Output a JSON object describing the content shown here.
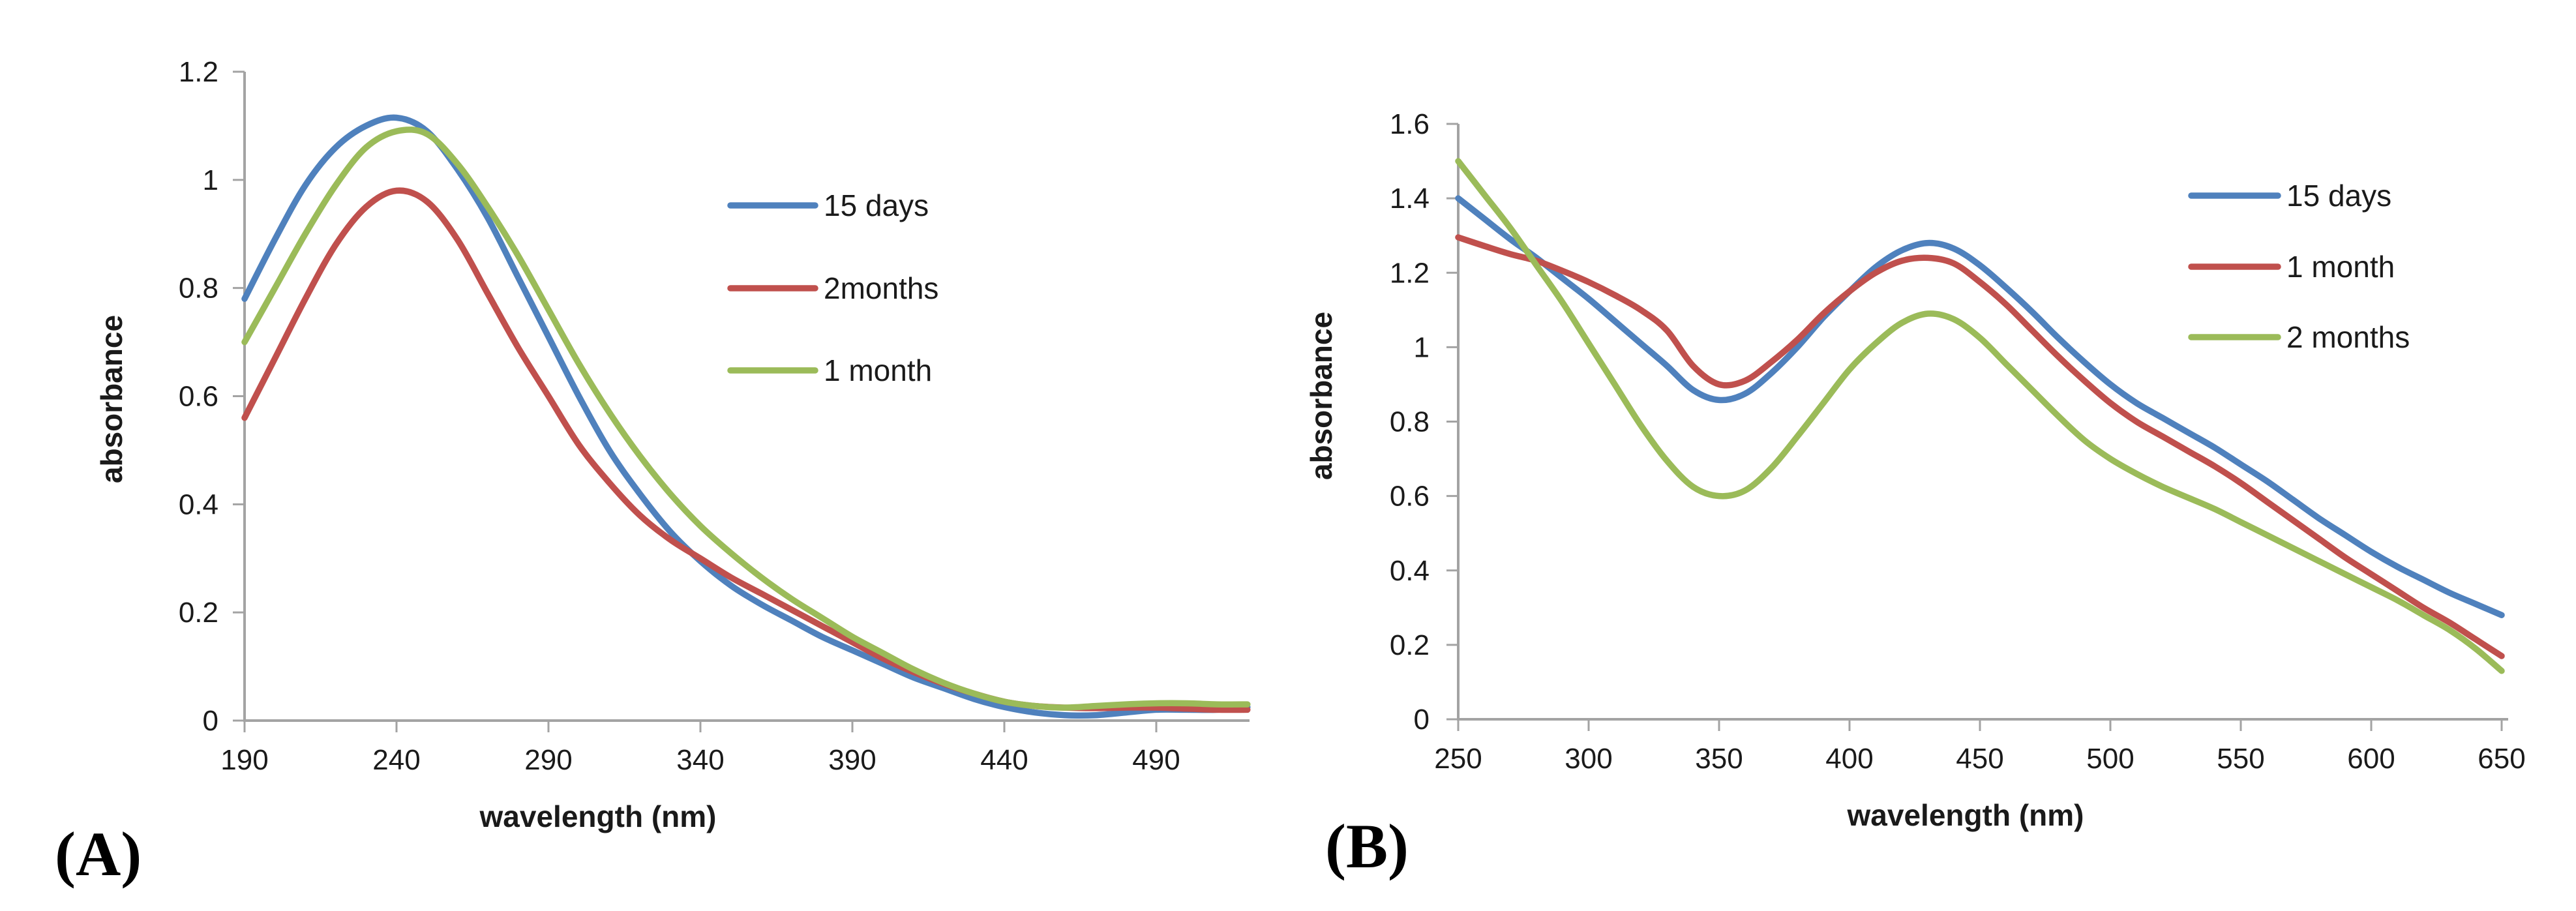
{
  "figure": {
    "background": "#ffffff",
    "panel_a_label": "(A)",
    "panel_b_label": "(B)"
  },
  "colors": {
    "series_blue": "#4F81BD",
    "series_red": "#C0504D",
    "series_green": "#9BBB59",
    "axis_gray": "#A3A3A3",
    "text_black": "#1a1a1a"
  },
  "chart_data": [
    {
      "id": "A",
      "type": "line",
      "panel_label": "(A)",
      "xlabel": "wavelength (nm)",
      "ylabel": "absorbance",
      "xlim": [
        190,
        525
      ],
      "ylim": [
        0,
        1.2
      ],
      "grid": false,
      "legend_position": "inside-right",
      "xticks": [
        190,
        240,
        290,
        340,
        390,
        440,
        490
      ],
      "yticks": [
        0,
        0.2,
        0.4,
        0.6,
        0.8,
        1,
        1.2
      ],
      "ytick_labels": [
        "0",
        "0.2",
        "0.4",
        "0.6",
        "0.8",
        "1",
        "1.2"
      ],
      "x_nm": [
        190,
        200,
        210,
        220,
        230,
        240,
        250,
        260,
        270,
        280,
        290,
        300,
        310,
        320,
        330,
        340,
        350,
        360,
        370,
        380,
        390,
        400,
        410,
        420,
        430,
        440,
        450,
        460,
        470,
        480,
        490,
        500,
        510,
        520
      ],
      "series": [
        {
          "name": "15 days",
          "color_key": "series_blue",
          "values": [
            0.78,
            0.89,
            0.99,
            1.06,
            1.1,
            1.115,
            1.09,
            1.02,
            0.93,
            0.82,
            0.71,
            0.6,
            0.5,
            0.42,
            0.35,
            0.295,
            0.25,
            0.215,
            0.185,
            0.155,
            0.13,
            0.105,
            0.08,
            0.06,
            0.04,
            0.025,
            0.015,
            0.01,
            0.01,
            0.015,
            0.02,
            0.02,
            0.02,
            0.025
          ]
        },
        {
          "name": "2months",
          "color_key": "series_red",
          "values": [
            0.56,
            0.67,
            0.78,
            0.88,
            0.95,
            0.98,
            0.96,
            0.89,
            0.79,
            0.69,
            0.6,
            0.51,
            0.44,
            0.38,
            0.335,
            0.3,
            0.265,
            0.235,
            0.205,
            0.175,
            0.145,
            0.115,
            0.09,
            0.068,
            0.05,
            0.035,
            0.027,
            0.024,
            0.023,
            0.024,
            0.024,
            0.022,
            0.02,
            0.02
          ]
        },
        {
          "name": "1 month",
          "color_key": "series_green",
          "values": [
            0.7,
            0.8,
            0.9,
            0.99,
            1.06,
            1.09,
            1.085,
            1.03,
            0.95,
            0.86,
            0.76,
            0.66,
            0.57,
            0.49,
            0.42,
            0.36,
            0.31,
            0.265,
            0.225,
            0.19,
            0.155,
            0.125,
            0.095,
            0.07,
            0.05,
            0.035,
            0.027,
            0.024,
            0.027,
            0.03,
            0.032,
            0.032,
            0.03,
            0.03
          ]
        }
      ]
    },
    {
      "id": "B",
      "type": "line",
      "panel_label": "(B)",
      "xlabel": "wavelength (nm)",
      "ylabel": "absorbance",
      "xlim": [
        250,
        652
      ],
      "ylim": [
        0,
        1.6
      ],
      "grid": false,
      "legend_position": "inside-right",
      "xticks": [
        250,
        300,
        350,
        400,
        450,
        500,
        550,
        600,
        650
      ],
      "yticks": [
        0,
        0.2,
        0.4,
        0.6,
        0.8,
        1,
        1.2,
        1.4,
        1.6
      ],
      "ytick_labels": [
        "0",
        "0.2",
        "0.4",
        "0.6",
        "0.8",
        "1",
        "1.2",
        "1.4",
        "1.6"
      ],
      "x_nm": [
        250,
        260,
        270,
        280,
        290,
        300,
        310,
        320,
        330,
        340,
        350,
        360,
        370,
        380,
        390,
        400,
        410,
        420,
        430,
        440,
        450,
        460,
        470,
        480,
        490,
        500,
        510,
        520,
        530,
        540,
        550,
        560,
        570,
        580,
        590,
        600,
        610,
        620,
        630,
        640,
        650
      ],
      "series": [
        {
          "name": "15 days",
          "color_key": "series_blue",
          "values": [
            1.4,
            1.345,
            1.29,
            1.24,
            1.185,
            1.13,
            1.07,
            1.01,
            0.95,
            0.885,
            0.858,
            0.875,
            0.93,
            1.0,
            1.08,
            1.15,
            1.215,
            1.26,
            1.28,
            1.265,
            1.22,
            1.16,
            1.095,
            1.025,
            0.96,
            0.9,
            0.85,
            0.81,
            0.77,
            0.73,
            0.685,
            0.64,
            0.59,
            0.54,
            0.495,
            0.45,
            0.41,
            0.375,
            0.34,
            0.31,
            0.28
          ]
        },
        {
          "name": "1 month",
          "color_key": "series_red",
          "values": [
            1.295,
            1.272,
            1.25,
            1.232,
            1.205,
            1.175,
            1.14,
            1.1,
            1.045,
            0.95,
            0.9,
            0.91,
            0.96,
            1.02,
            1.09,
            1.15,
            1.2,
            1.232,
            1.24,
            1.225,
            1.175,
            1.115,
            1.045,
            0.975,
            0.91,
            0.85,
            0.8,
            0.76,
            0.72,
            0.68,
            0.635,
            0.585,
            0.535,
            0.485,
            0.435,
            0.39,
            0.345,
            0.3,
            0.26,
            0.215,
            0.17
          ]
        },
        {
          "name": "2 months",
          "color_key": "series_green",
          "values": [
            1.5,
            1.41,
            1.32,
            1.22,
            1.12,
            1.01,
            0.9,
            0.79,
            0.695,
            0.625,
            0.6,
            0.615,
            0.675,
            0.76,
            0.85,
            0.94,
            1.01,
            1.065,
            1.09,
            1.075,
            1.025,
            0.955,
            0.885,
            0.815,
            0.75,
            0.7,
            0.66,
            0.625,
            0.595,
            0.565,
            0.53,
            0.495,
            0.46,
            0.425,
            0.39,
            0.355,
            0.32,
            0.28,
            0.24,
            0.19,
            0.13
          ]
        }
      ]
    }
  ]
}
